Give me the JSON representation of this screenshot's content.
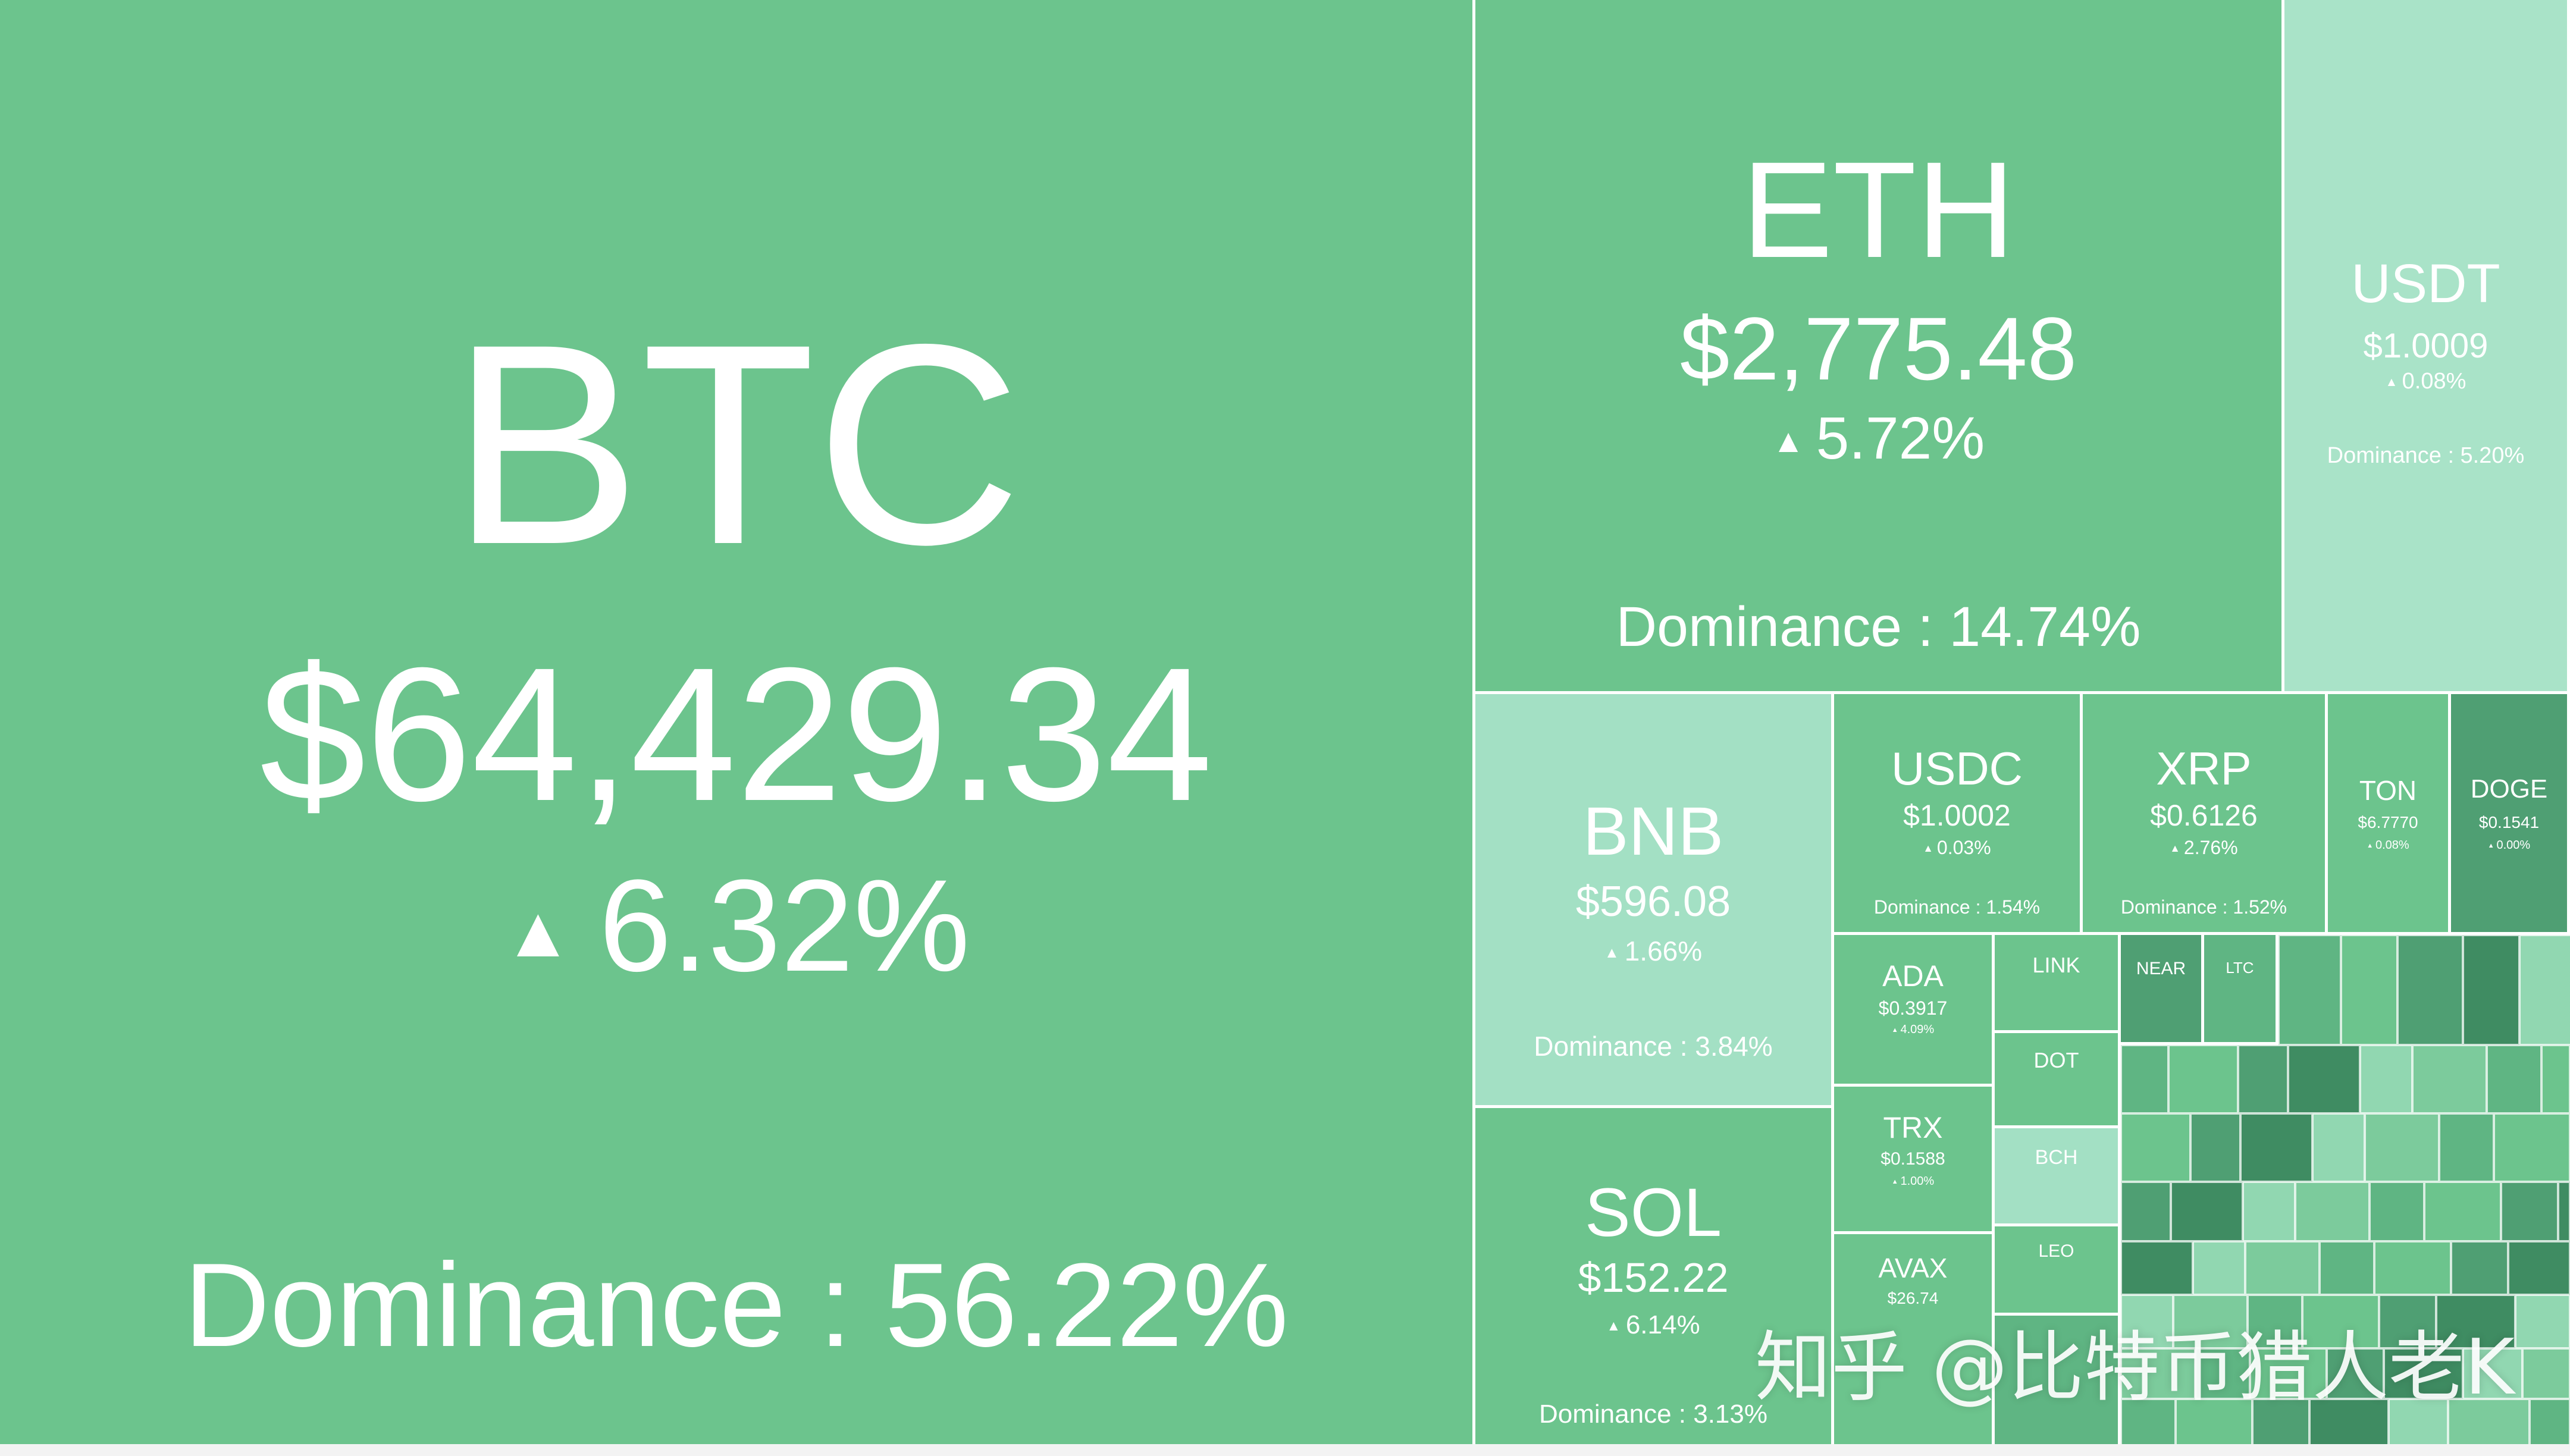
{
  "coins": {
    "btc": {
      "symbol": "BTC",
      "price": "$64,429.34",
      "change": "6.32%",
      "dominance": "Dominance : 56.22%"
    },
    "eth": {
      "symbol": "ETH",
      "price": "$2,775.48",
      "change": "5.72%",
      "dominance": "Dominance : 14.74%"
    },
    "usdt": {
      "symbol": "USDT",
      "price": "$1.0009",
      "change": "0.08%",
      "dominance": "Dominance : 5.20%"
    },
    "bnb": {
      "symbol": "BNB",
      "price": "$596.08",
      "change": "1.66%",
      "dominance": "Dominance : 3.84%"
    },
    "usdc": {
      "symbol": "USDC",
      "price": "$1.0002",
      "change": "0.03%",
      "dominance": "Dominance : 1.54%"
    },
    "xrp": {
      "symbol": "XRP",
      "price": "$0.6126",
      "change": "2.76%",
      "dominance": "Dominance : 1.52%"
    },
    "ton": {
      "symbol": "TON",
      "price": "$6.7770",
      "change": "0.08%"
    },
    "doge": {
      "symbol": "DOGE",
      "price": "$0.1541",
      "change": "0.00%"
    },
    "sol": {
      "symbol": "SOL",
      "price": "$152.22",
      "change": "6.14%",
      "dominance": "Dominance : 3.13%"
    },
    "ada": {
      "symbol": "ADA",
      "price": "$0.3917",
      "change": "4.09%"
    },
    "trx": {
      "symbol": "TRX",
      "price": "$0.1588",
      "change": "1.00%"
    },
    "avax": {
      "symbol": "AVAX",
      "price": "$26.74"
    },
    "link": {
      "symbol": "LINK"
    },
    "dot": {
      "symbol": "DOT"
    },
    "bch": {
      "symbol": "BCH"
    },
    "leo": {
      "symbol": "LEO"
    },
    "near": {
      "symbol": "NEAR"
    },
    "ltc": {
      "symbol": "LTC"
    }
  },
  "arrow_glyph": "▲",
  "watermark": "知乎 @比特币猎人老K",
  "colors": {
    "green_base": "#6cc48d",
    "green_mid": "#5fb583",
    "green_dark": "#4f9f73",
    "green_light": "#a3e0c4",
    "text": "#ffffff"
  }
}
